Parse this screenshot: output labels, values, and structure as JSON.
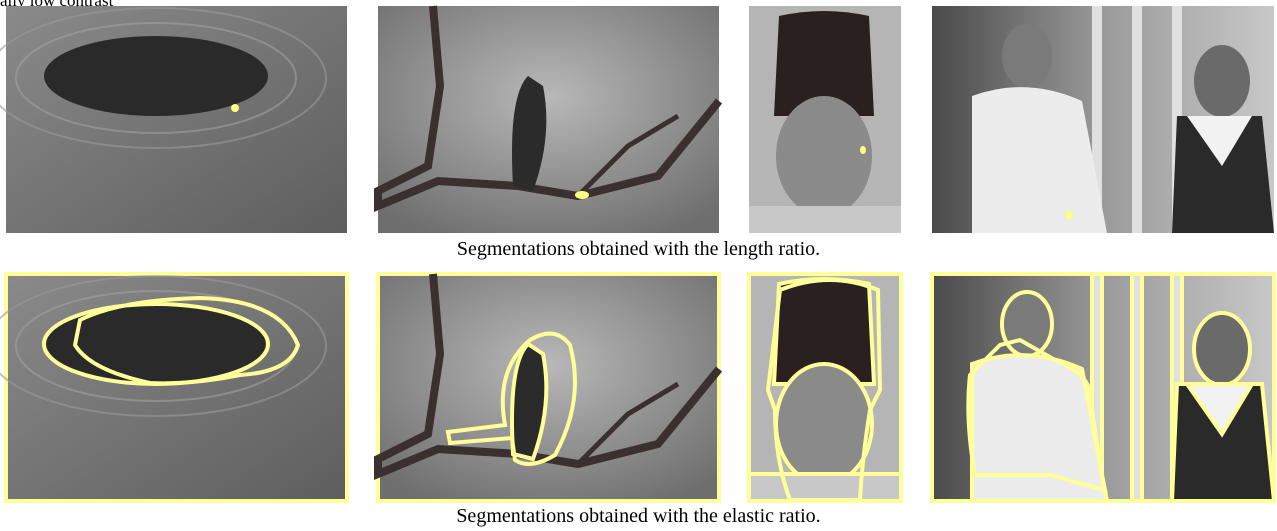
{
  "fragment": "ally low contrast",
  "captions": [
    "Segmentations obtained with the length ratio.",
    "Segmentations obtained with the elastic ratio."
  ]
}
